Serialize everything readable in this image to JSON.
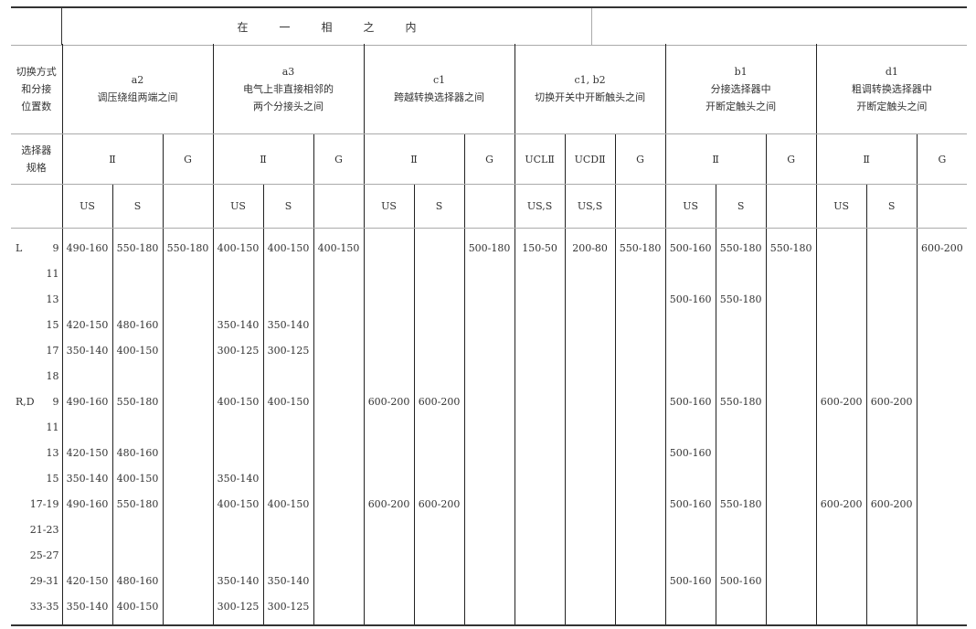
{
  "title_row": {
    "chars": [
      "在",
      "一",
      "相",
      "之",
      "内"
    ]
  },
  "row_label": {
    "lines": [
      "切换方式",
      "和分接",
      "位置数"
    ]
  },
  "spec_label": {
    "lines": [
      "选择器",
      "规格"
    ]
  },
  "groups": [
    {
      "code": "a2",
      "lines": [
        "调压绕组两端之间"
      ]
    },
    {
      "code": "a3",
      "lines": [
        "电气上非直接相邻的",
        "两个分接头之间"
      ]
    },
    {
      "code": "c1",
      "lines": [
        "跨越转换选择器之间"
      ]
    },
    {
      "code": "c1, b2",
      "lines": [
        "切换开关中开断触头之间"
      ]
    },
    {
      "code": "b1",
      "lines": [
        "分接选择器中",
        "开断定触头之间"
      ]
    },
    {
      "code": "d1",
      "lines": [
        "粗调转换选择器中",
        "开断定触头之间"
      ]
    }
  ],
  "specs": [
    {
      "label": "Ⅱ",
      "span": 2
    },
    {
      "label": "G",
      "span": 1
    },
    {
      "label": "Ⅱ",
      "span": 2
    },
    {
      "label": "G",
      "span": 1
    },
    {
      "label": "Ⅱ",
      "span": 2
    },
    {
      "label": "G",
      "span": 1
    },
    {
      "label": "UCLⅡ",
      "span": 1
    },
    {
      "label": "UCDⅡ",
      "span": 1
    },
    {
      "label": "G",
      "span": 1
    },
    {
      "label": "Ⅱ",
      "span": 2
    },
    {
      "label": "G",
      "span": 1
    },
    {
      "label": "Ⅱ",
      "span": 2
    },
    {
      "label": "G",
      "span": 1
    }
  ],
  "subheaders": [
    "US",
    "S",
    "",
    "US",
    "S",
    "",
    "US",
    "S",
    "",
    "US,S",
    "US,S",
    "",
    "US",
    "S",
    "",
    "US",
    "S",
    ""
  ],
  "rows": [
    {
      "prefix": "L",
      "pos": "9",
      "cells": [
        "490-160",
        "550-180",
        "550-180",
        "400-150",
        "400-150",
        "400-150",
        "",
        "",
        "500-180",
        "150-50",
        "200-80",
        "550-180",
        "500-160",
        "550-180",
        "550-180",
        "",
        "",
        "600-200"
      ]
    },
    {
      "prefix": "",
      "pos": "11",
      "cells": [
        "",
        "",
        "",
        "",
        "",
        "",
        "",
        "",
        "",
        "",
        "",
        "",
        "",
        "",
        "",
        "",
        "",
        ""
      ]
    },
    {
      "prefix": "",
      "pos": "13",
      "cells": [
        "",
        "",
        "",
        "",
        "",
        "",
        "",
        "",
        "",
        "",
        "",
        "",
        "500-160",
        "550-180",
        "",
        "",
        "",
        ""
      ]
    },
    {
      "prefix": "",
      "pos": "15",
      "cells": [
        "420-150",
        "480-160",
        "",
        "350-140",
        "350-140",
        "",
        "",
        "",
        "",
        "",
        "",
        "",
        "",
        "",
        "",
        "",
        "",
        ""
      ]
    },
    {
      "prefix": "",
      "pos": "17",
      "cells": [
        "350-140",
        "400-150",
        "",
        "300-125",
        "300-125",
        "",
        "",
        "",
        "",
        "",
        "",
        "",
        "",
        "",
        "",
        "",
        "",
        ""
      ]
    },
    {
      "prefix": "",
      "pos": "18",
      "cells": [
        "",
        "",
        "",
        "",
        "",
        "",
        "",
        "",
        "",
        "",
        "",
        "",
        "",
        "",
        "",
        "",
        "",
        ""
      ]
    },
    {
      "prefix": "R,D",
      "pos": "9",
      "cells": [
        "490-160",
        "550-180",
        "",
        "400-150",
        "400-150",
        "",
        "600-200",
        "600-200",
        "",
        "",
        "",
        "",
        "500-160",
        "550-180",
        "",
        "600-200",
        "600-200",
        ""
      ]
    },
    {
      "prefix": "",
      "pos": "11",
      "cells": [
        "",
        "",
        "",
        "",
        "",
        "",
        "",
        "",
        "",
        "",
        "",
        "",
        "",
        "",
        "",
        "",
        "",
        ""
      ]
    },
    {
      "prefix": "",
      "pos": "13",
      "cells": [
        "420-150",
        "480-160",
        "",
        "",
        "",
        "",
        "",
        "",
        "",
        "",
        "",
        "",
        "500-160",
        "",
        "",
        "",
        "",
        ""
      ]
    },
    {
      "prefix": "",
      "pos": "15",
      "cells": [
        "350-140",
        "400-150",
        "",
        "350-140",
        "",
        "",
        "",
        "",
        "",
        "",
        "",
        "",
        "",
        "",
        "",
        "",
        "",
        ""
      ]
    },
    {
      "prefix": "",
      "pos": "17-19",
      "cells": [
        "490-160",
        "550-180",
        "",
        "400-150",
        "400-150",
        "",
        "600-200",
        "600-200",
        "",
        "",
        "",
        "",
        "500-160",
        "550-180",
        "",
        "600-200",
        "600-200",
        ""
      ]
    },
    {
      "prefix": "",
      "pos": "21-23",
      "cells": [
        "",
        "",
        "",
        "",
        "",
        "",
        "",
        "",
        "",
        "",
        "",
        "",
        "",
        "",
        "",
        "",
        "",
        ""
      ]
    },
    {
      "prefix": "",
      "pos": "25-27",
      "cells": [
        "",
        "",
        "",
        "",
        "",
        "",
        "",
        "",
        "",
        "",
        "",
        "",
        "",
        "",
        "",
        "",
        "",
        ""
      ]
    },
    {
      "prefix": "",
      "pos": "29-31",
      "cells": [
        "420-150",
        "480-160",
        "",
        "350-140",
        "350-140",
        "",
        "",
        "",
        "",
        "",
        "",
        "",
        "500-160",
        "500-160",
        "",
        "",
        "",
        ""
      ]
    },
    {
      "prefix": "",
      "pos": "33-35",
      "cells": [
        "350-140",
        "400-150",
        "",
        "300-125",
        "300-125",
        "",
        "",
        "",
        "",
        "",
        "",
        "",
        "",
        "",
        "",
        "",
        "",
        ""
      ]
    }
  ]
}
